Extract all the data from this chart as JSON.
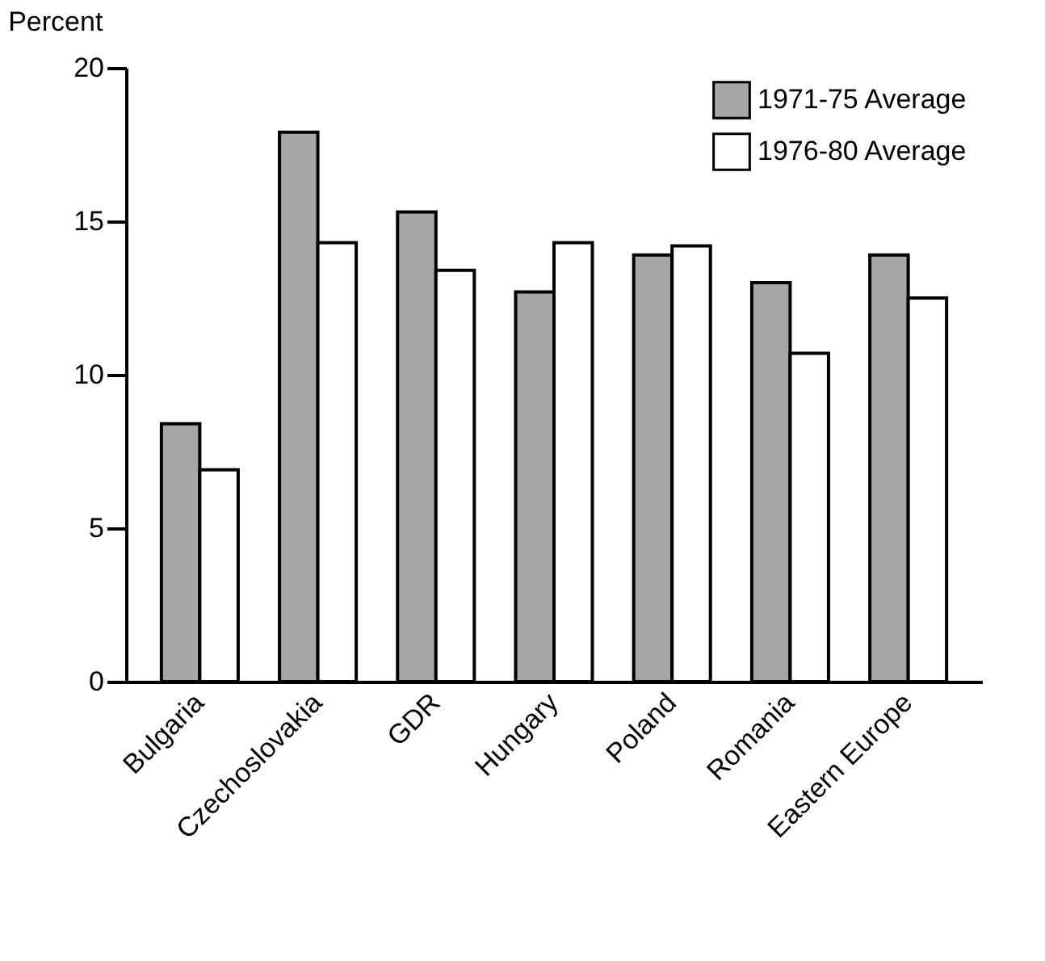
{
  "chart_data": {
    "type": "bar",
    "ylabel": "Percent",
    "categories": [
      "Bulgaria",
      "Czechoslovakia",
      "GDR",
      "Hungary",
      "Poland",
      "Romania",
      "Eastern Europe"
    ],
    "series": [
      {
        "name": "1971-75 Average",
        "color": "#a6a6a6",
        "values": [
          8.4,
          17.9,
          15.3,
          12.7,
          13.9,
          13.0,
          13.9
        ]
      },
      {
        "name": "1976-80 Average",
        "color": "#ffffff",
        "values": [
          6.9,
          14.3,
          13.4,
          14.3,
          14.2,
          10.7,
          12.5
        ]
      }
    ],
    "ylim": [
      0,
      20
    ],
    "yticks": [
      0,
      5,
      10,
      15,
      20
    ],
    "grid": false,
    "legend": "top right"
  }
}
